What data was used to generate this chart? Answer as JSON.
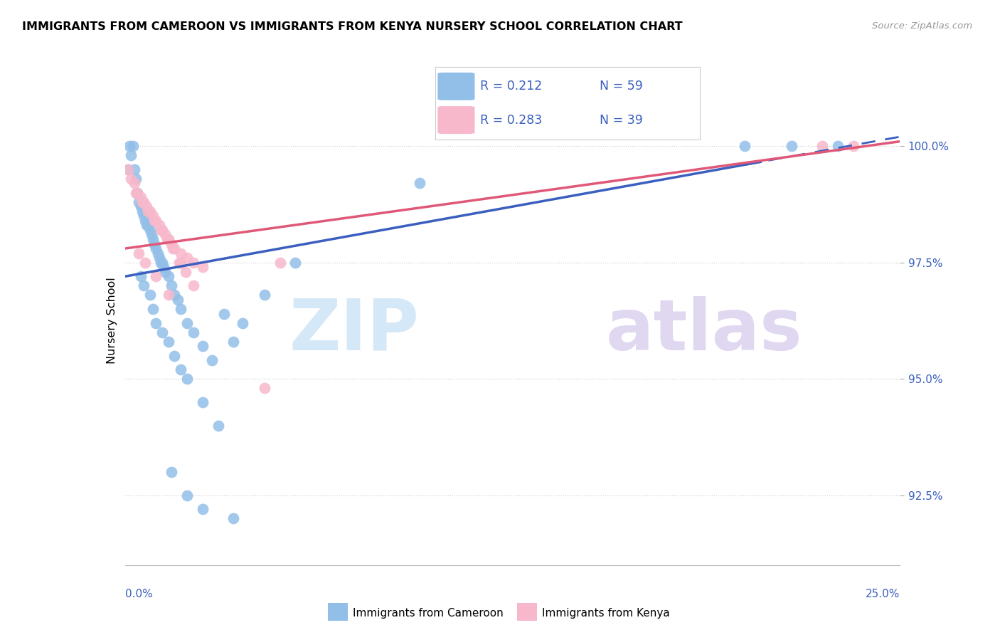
{
  "title": "IMMIGRANTS FROM CAMEROON VS IMMIGRANTS FROM KENYA NURSERY SCHOOL CORRELATION CHART",
  "source": "Source: ZipAtlas.com",
  "ylabel": "Nursery School",
  "ytick_labels": [
    "92.5%",
    "95.0%",
    "97.5%",
    "100.0%"
  ],
  "ytick_values": [
    92.5,
    95.0,
    97.5,
    100.0
  ],
  "xlim": [
    0.0,
    25.0
  ],
  "ylim": [
    91.0,
    101.5
  ],
  "blue_color": "#92bfe8",
  "pink_color": "#f7b8cb",
  "trend_blue_color": "#3a5fbf",
  "trend_pink_color": "#e05878",
  "watermark_zip_color": "#cde4f7",
  "watermark_atlas_color": "#dbd0ee",
  "legend_r_blue": "R = 0.212",
  "legend_n_blue": "N = 59",
  "legend_r_pink": "R = 0.283",
  "legend_n_pink": "N = 39",
  "blue_trend_start_x": 0.0,
  "blue_trend_end_solid_x": 20.5,
  "blue_trend_end_dash_x": 25.0,
  "blue_trend_y_at_0": 97.2,
  "blue_trend_y_at_25": 100.2,
  "pink_trend_y_at_0": 97.8,
  "pink_trend_y_at_25": 100.1,
  "cameroon_x": [
    0.1,
    0.15,
    0.2,
    0.25,
    0.3,
    0.35,
    0.4,
    0.45,
    0.5,
    0.55,
    0.6,
    0.65,
    0.7,
    0.75,
    0.8,
    0.85,
    0.9,
    0.95,
    1.0,
    1.05,
    1.1,
    1.15,
    1.2,
    1.25,
    1.3,
    1.4,
    1.5,
    1.6,
    1.7,
    1.8,
    2.0,
    2.2,
    2.5,
    2.8,
    3.2,
    3.5,
    3.8,
    4.5,
    5.5,
    0.5,
    0.6,
    0.8,
    0.9,
    1.0,
    1.2,
    1.4,
    1.6,
    1.8,
    2.0,
    2.5,
    3.0,
    1.5,
    2.0,
    2.5,
    3.5,
    9.5,
    20.0,
    21.5,
    23.0
  ],
  "cameroon_y": [
    99.5,
    100.0,
    99.8,
    100.0,
    99.5,
    99.3,
    99.0,
    98.8,
    98.7,
    98.6,
    98.5,
    98.4,
    98.3,
    98.3,
    98.2,
    98.1,
    98.0,
    97.9,
    97.8,
    97.7,
    97.6,
    97.5,
    97.5,
    97.4,
    97.3,
    97.2,
    97.0,
    96.8,
    96.7,
    96.5,
    96.2,
    96.0,
    95.7,
    95.4,
    96.4,
    95.8,
    96.2,
    96.8,
    97.5,
    97.2,
    97.0,
    96.8,
    96.5,
    96.2,
    96.0,
    95.8,
    95.5,
    95.2,
    95.0,
    94.5,
    94.0,
    93.0,
    92.5,
    92.2,
    92.0,
    99.2,
    100.0,
    100.0,
    100.0
  ],
  "kenya_x": [
    0.1,
    0.2,
    0.3,
    0.4,
    0.5,
    0.6,
    0.7,
    0.8,
    0.9,
    1.0,
    1.1,
    1.2,
    1.3,
    1.4,
    1.5,
    1.6,
    1.8,
    2.0,
    2.2,
    2.5,
    0.35,
    0.55,
    0.75,
    0.95,
    1.15,
    1.35,
    1.55,
    1.75,
    1.95,
    0.45,
    0.65,
    1.0,
    1.4,
    1.8,
    2.2,
    4.5,
    5.0,
    22.5,
    23.5
  ],
  "kenya_y": [
    99.5,
    99.3,
    99.2,
    99.0,
    98.9,
    98.8,
    98.7,
    98.6,
    98.5,
    98.4,
    98.3,
    98.2,
    98.1,
    98.0,
    97.9,
    97.8,
    97.7,
    97.6,
    97.5,
    97.4,
    99.0,
    98.8,
    98.6,
    98.4,
    98.2,
    98.0,
    97.8,
    97.5,
    97.3,
    97.7,
    97.5,
    97.2,
    96.8,
    97.5,
    97.0,
    94.8,
    97.5,
    100.0,
    100.0
  ]
}
